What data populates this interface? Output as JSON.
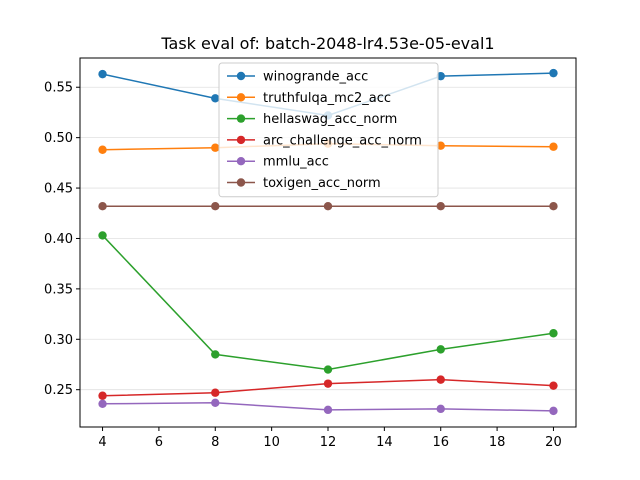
{
  "chart_data": {
    "type": "line",
    "title": "Task eval of: batch-2048-lr4.53e-05-eval1",
    "xlabel": "",
    "ylabel": "",
    "x": [
      4,
      8,
      12,
      16,
      20
    ],
    "xlim": [
      3.2,
      20.8
    ],
    "ylim": [
      0.213,
      0.579
    ],
    "xticks": [
      4,
      6,
      8,
      10,
      12,
      14,
      16,
      18,
      20
    ],
    "yticks": [
      0.25,
      0.3,
      0.35,
      0.4,
      0.45,
      0.5,
      0.55
    ],
    "ytick_labels": [
      "0.25",
      "0.30",
      "0.35",
      "0.40",
      "0.45",
      "0.50",
      "0.55"
    ],
    "grid": "horizontal",
    "legend_placement": "top-center",
    "series": [
      {
        "name": "winogrande_acc",
        "color": "#1f77b4",
        "values": [
          0.563,
          0.539,
          0.522,
          0.561,
          0.564
        ]
      },
      {
        "name": "truthfulqa_mc2_acc",
        "color": "#ff7f0e",
        "values": [
          0.488,
          0.49,
          0.494,
          0.492,
          0.491
        ]
      },
      {
        "name": "hellaswag_acc_norm",
        "color": "#2ca02c",
        "values": [
          0.403,
          0.285,
          0.27,
          0.29,
          0.306
        ]
      },
      {
        "name": "arc_challenge_acc_norm",
        "color": "#d62728",
        "values": [
          0.244,
          0.247,
          0.256,
          0.26,
          0.254
        ]
      },
      {
        "name": "mmlu_acc",
        "color": "#9467bd",
        "values": [
          0.236,
          0.237,
          0.23,
          0.231,
          0.229
        ]
      },
      {
        "name": "toxigen_acc_norm",
        "color": "#8c564b",
        "values": [
          0.432,
          0.432,
          0.432,
          0.432,
          0.432
        ]
      }
    ]
  }
}
